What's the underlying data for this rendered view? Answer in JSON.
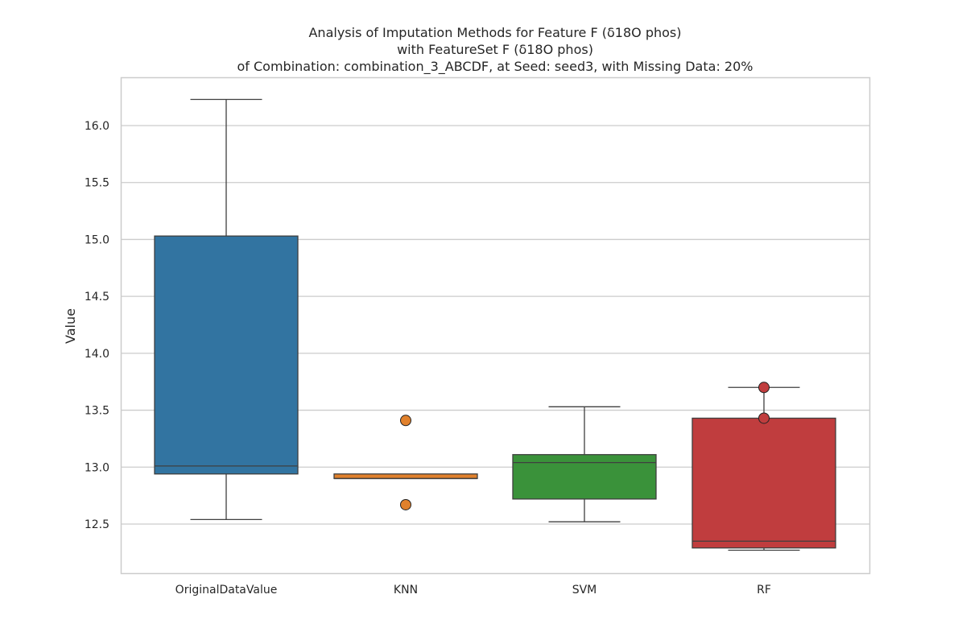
{
  "chart_data": {
    "type": "box",
    "title": [
      "Analysis of Imputation Methods for Feature F (δ18O phos)",
      "with FeatureSet F (δ18O phos)",
      "of Combination: combination_3_ABCDF, at Seed: seed3, with Missing Data: 20%"
    ],
    "xlabel": "",
    "ylabel": "Value",
    "ylim": [
      12.1,
      16.4
    ],
    "yticks": [
      "12.5",
      "13.0",
      "13.5",
      "14.0",
      "14.5",
      "15.0",
      "15.5",
      "16.0"
    ],
    "grid": true,
    "categories": [
      "OriginalDataValue",
      "KNN",
      "SVM",
      "RF"
    ],
    "boxes": [
      {
        "name": "OriginalDataValue",
        "color": "#3274a1",
        "whisker_low": 12.54,
        "q1": 12.94,
        "median": 13.01,
        "q3": 15.03,
        "whisker_high": 16.23,
        "outliers": []
      },
      {
        "name": "KNN",
        "color": "#e1812c",
        "whisker_low": 12.9,
        "q1": 12.9,
        "median": 12.9,
        "q3": 12.94,
        "whisker_high": 12.94,
        "outliers": [
          13.41,
          12.67
        ]
      },
      {
        "name": "SVM",
        "color": "#3a923a",
        "whisker_low": 12.52,
        "q1": 12.72,
        "median": 13.04,
        "q3": 13.11,
        "whisker_high": 13.53,
        "outliers": []
      },
      {
        "name": "RF",
        "color": "#c03d3e",
        "whisker_low": 12.27,
        "q1": 12.29,
        "median": 12.35,
        "q3": 13.43,
        "whisker_high": 13.7,
        "outliers": [
          13.7,
          13.43
        ]
      }
    ]
  }
}
